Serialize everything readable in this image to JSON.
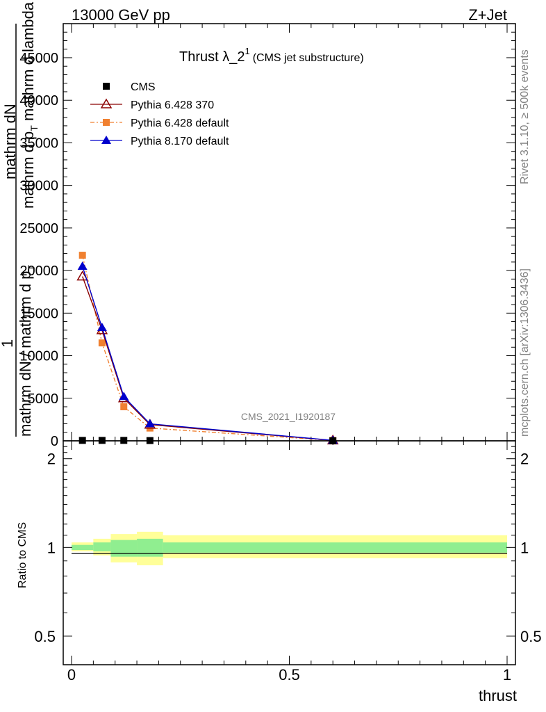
{
  "header": {
    "left": "13000 GeV pp",
    "right": "Z+Jet"
  },
  "side": {
    "rivet": "Rivet 3.1.10, ≥ 500k events",
    "mcplots": "mcplots.cern.ch [arXiv:1306.3436]"
  },
  "chart_data": [
    {
      "type": "line",
      "title_main": "Thrust λ_2",
      "title_sup": "1",
      "title_note": "(CMS jet substructure)",
      "watermark": "CMS_2021_I1920187",
      "ylabel_part1": "mathrm dN",
      "ylabel_part2": "mathrm d p",
      "ylabel_part2_sub": "T",
      "ylabel_part2_rest": " mathrm d lambda",
      "ylabel_num": "1",
      "ylabel_den": "mathrm dN / mathrm d p",
      "ylabel_den_sub": "T",
      "xlim": [
        0,
        1
      ],
      "ylim": [
        0,
        49000
      ],
      "yticks": [
        0,
        5000,
        10000,
        15000,
        20000,
        25000,
        30000,
        35000,
        40000,
        45000
      ],
      "ytick_labels": [
        "0",
        "5000",
        "10000",
        "15000",
        "20000",
        "25000",
        "30000",
        "35000",
        "40000",
        "45000"
      ],
      "legend": [
        {
          "name": "CMS",
          "color": "#000000",
          "marker": "square"
        },
        {
          "name": "Pythia 6.428 370",
          "color": "#8b0000",
          "marker": "triangle-open"
        },
        {
          "name": "Pythia 6.428 default",
          "color": "#f08030",
          "marker": "square",
          "dash": "dashdot"
        },
        {
          "name": "Pythia 8.170 default",
          "color": "#0000cc",
          "marker": "triangle"
        }
      ],
      "series": [
        {
          "name": "CMS",
          "x": [
            0.025,
            0.07,
            0.12,
            0.18,
            0.6
          ],
          "values": [
            50,
            50,
            50,
            30,
            5
          ]
        },
        {
          "name": "Pythia 6.428 370",
          "x": [
            0.025,
            0.07,
            0.12,
            0.18,
            0.6
          ],
          "values": [
            19300,
            13000,
            5000,
            1900,
            50
          ]
        },
        {
          "name": "Pythia 6.428 default",
          "x": [
            0.025,
            0.07,
            0.12,
            0.18,
            0.6
          ],
          "values": [
            21800,
            11500,
            4000,
            1500,
            40
          ]
        },
        {
          "name": "Pythia 8.170 default",
          "x": [
            0.025,
            0.07,
            0.12,
            0.18,
            0.6
          ],
          "values": [
            20500,
            13300,
            5200,
            2000,
            60
          ]
        }
      ]
    },
    {
      "type": "area",
      "ylabel": "Ratio to CMS",
      "xlabel": "thrust",
      "xlim": [
        0,
        1
      ],
      "ylim": [
        0.4,
        2.3
      ],
      "xticks": [
        0,
        0.5,
        1
      ],
      "xtick_labels": [
        "0",
        "0.5",
        "1"
      ],
      "yticks": [
        0.5,
        1,
        2
      ],
      "ytick_labels": [
        "0.5",
        "1",
        "2"
      ],
      "bins": [
        {
          "x0": 0.0,
          "x1": 0.05,
          "inner": [
            0.98,
            1.02
          ],
          "outer": [
            0.97,
            1.04
          ]
        },
        {
          "x0": 0.05,
          "x1": 0.09,
          "inner": [
            0.97,
            1.04
          ],
          "outer": [
            0.94,
            1.07
          ]
        },
        {
          "x0": 0.09,
          "x1": 0.15,
          "inner": [
            0.93,
            1.06
          ],
          "outer": [
            0.89,
            1.11
          ]
        },
        {
          "x0": 0.15,
          "x1": 0.21,
          "inner": [
            0.93,
            1.07
          ],
          "outer": [
            0.87,
            1.13
          ]
        },
        {
          "x0": 0.21,
          "x1": 1.0,
          "inner": [
            0.96,
            1.04
          ],
          "outer": [
            0.92,
            1.1
          ]
        }
      ],
      "colors": {
        "inner": "#90ee90",
        "outer": "#ffff99"
      }
    }
  ]
}
